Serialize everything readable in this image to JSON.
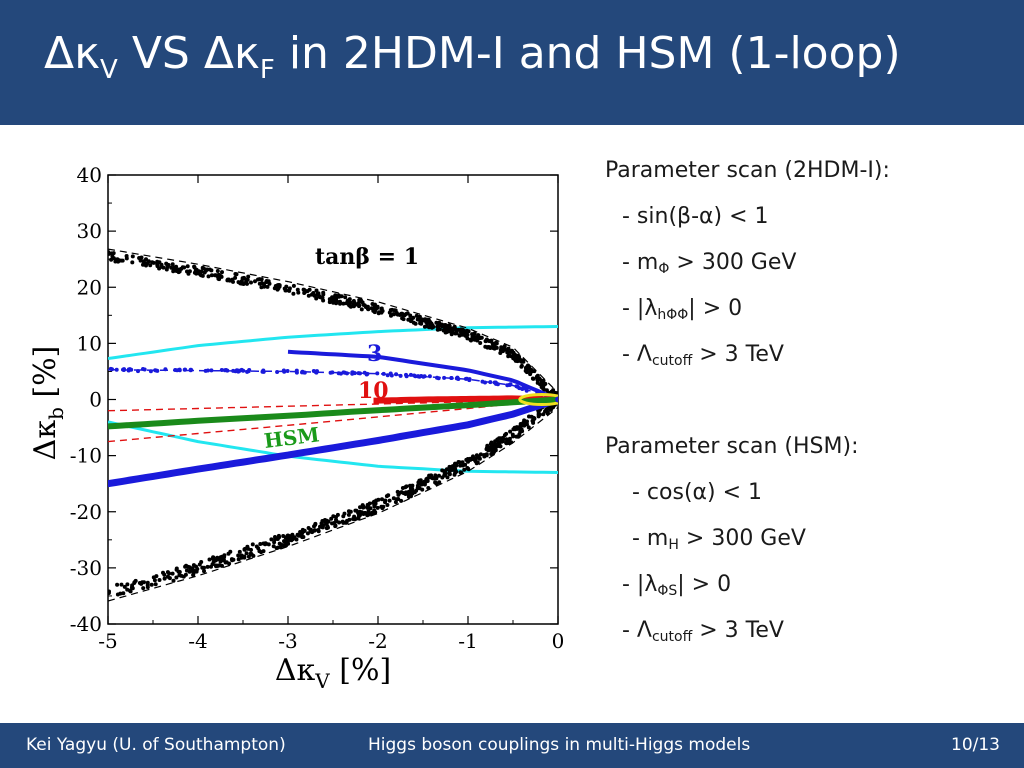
{
  "slide": {
    "title": {
      "main1": "Δκ",
      "sub1": "V",
      "mid": " VS Δκ",
      "sub2": "F",
      "rest": " in 2HDM-I and HSM (1-loop)"
    },
    "params_2hdm": {
      "heading": "Parameter scan (2HDM-I):",
      "line1": "- sin(β-α) < 1",
      "line2_pre": "- m",
      "line2_sub": "Φ",
      "line2_post": " > 300 GeV",
      "line3_pre": "- |λ",
      "line3_sub": "hΦΦ",
      "line3_post": "| > 0",
      "line4_pre": "- Λ",
      "line4_sub": "cutoff",
      "line4_post": " > 3 TeV"
    },
    "params_hsm": {
      "heading": "Parameter scan (HSM):",
      "line1": "- cos(α) < 1",
      "line2_pre": "- m",
      "line2_sub": "H",
      "line2_post": " > 300 GeV",
      "line3_pre": "- |λ",
      "line3_sub": "ΦS",
      "line3_post": "| > 0",
      "line4_pre": "- Λ",
      "line4_sub": "cutoff",
      "line4_post": " > 3 TeV"
    },
    "footer": {
      "author": "Kei Yagyu (U. of Southampton)",
      "talk": "Higgs boson couplings in multi-Higgs models",
      "page": "10/13"
    }
  },
  "chart_data": {
    "type": "scatter",
    "xlabel": "Δκ",
    "xlabel_sub": "V",
    "xlabel_unit": "[%]",
    "ylabel": "Δκ",
    "ylabel_sub": "b",
    "ylabel_unit": "[%]",
    "xlim": [
      -5,
      0
    ],
    "ylim": [
      -40,
      40
    ],
    "x_ticks": [
      -5,
      -4,
      -3,
      -2,
      -1,
      0
    ],
    "y_ticks": [
      40,
      30,
      20,
      10,
      0,
      -10,
      -20,
      -30,
      -40
    ],
    "annotations": [
      {
        "text": "tanβ = 1",
        "color": "#000000"
      },
      {
        "text": "3",
        "color": "#1a1adb"
      },
      {
        "text": "10",
        "color": "#e01010"
      },
      {
        "text": "HSM",
        "color": "#1a9a1a"
      }
    ],
    "colors": {
      "tb1": "#000000",
      "tb3": "#1a1adb",
      "tb10": "#e01010",
      "hsm": "#1a8a1a",
      "cyan": "#22e6f0",
      "yellow": "#f0e020"
    },
    "series": [
      {
        "label": "tanβ = 1",
        "upper": {
          "x": [
            -5,
            -4,
            -3,
            -2,
            -1,
            -0.5,
            0
          ],
          "y": [
            25.6,
            22.9,
            19.8,
            16.2,
            11.5,
            8.1,
            0
          ]
        },
        "lower": {
          "x": [
            -5,
            -4,
            -3,
            -2,
            -1,
            -0.5,
            0
          ],
          "y": [
            -34.5,
            -30.0,
            -24.8,
            -18.9,
            -11.4,
            -6.3,
            0
          ]
        }
      },
      {
        "label": "3",
        "upper": {
          "x": [
            -5,
            -3,
            -2,
            -1,
            -0.5,
            0
          ],
          "y": [
            5.3,
            5.0,
            4.6,
            3.6,
            2.5,
            0
          ]
        },
        "lower": {
          "x": [
            -5,
            -4,
            -3,
            -2,
            -1,
            -0.5,
            0
          ],
          "y": [
            -15.0,
            -12.4,
            -9.9,
            -7.3,
            -4.5,
            -2.6,
            0
          ]
        }
      },
      {
        "label": "10",
        "x": [
          -2,
          -1.5,
          -1,
          -0.5,
          0
        ],
        "y": [
          -0.2,
          0,
          0.1,
          0.2,
          0
        ]
      },
      {
        "label": "HSM",
        "x": [
          -5,
          -4,
          -3,
          -2,
          -1,
          0
        ],
        "y": [
          -4.8,
          -3.8,
          -2.9,
          -1.9,
          -1.0,
          0
        ]
      },
      {
        "label": "cyan",
        "upper": {
          "x": [
            -5,
            -4,
            -3,
            -2,
            -1,
            0
          ],
          "y": [
            7.3,
            9.6,
            11.1,
            12.1,
            12.8,
            13.0
          ]
        },
        "lower": {
          "x": [
            -5,
            -4,
            -3,
            -2,
            -1,
            0
          ],
          "y": [
            -4.0,
            -7.5,
            -10.1,
            -11.9,
            -12.8,
            -13.0
          ]
        }
      }
    ]
  }
}
